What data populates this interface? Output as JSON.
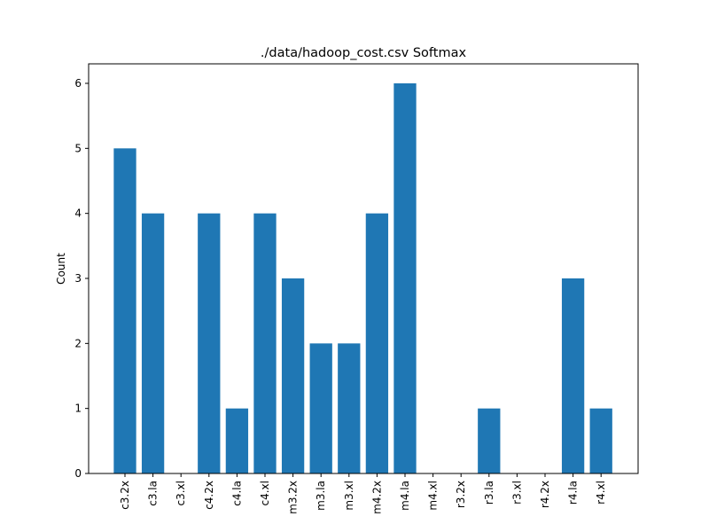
{
  "chart_data": {
    "type": "bar",
    "title": "./data/hadoop_cost.csv Softmax",
    "xlabel": "",
    "ylabel": "Count",
    "categories": [
      "c3.2x",
      "c3.la",
      "c3.xl",
      "c4.2x",
      "c4.la",
      "c4.xl",
      "m3.2x",
      "m3.la",
      "m3.xl",
      "m4.2x",
      "m4.la",
      "m4.xl",
      "r3.2x",
      "r3.la",
      "r3.xl",
      "r4.2x",
      "r4.la",
      "r4.xl"
    ],
    "values": [
      5,
      4,
      0,
      4,
      1,
      4,
      3,
      2,
      2,
      4,
      6,
      0,
      0,
      1,
      0,
      0,
      3,
      1
    ],
    "ylim": [
      0,
      6.3
    ],
    "yticks": [
      "0",
      "1",
      "2",
      "3",
      "4",
      "5",
      "6"
    ],
    "bar_color": "#1f77b4",
    "grid": false,
    "legend": "none"
  }
}
